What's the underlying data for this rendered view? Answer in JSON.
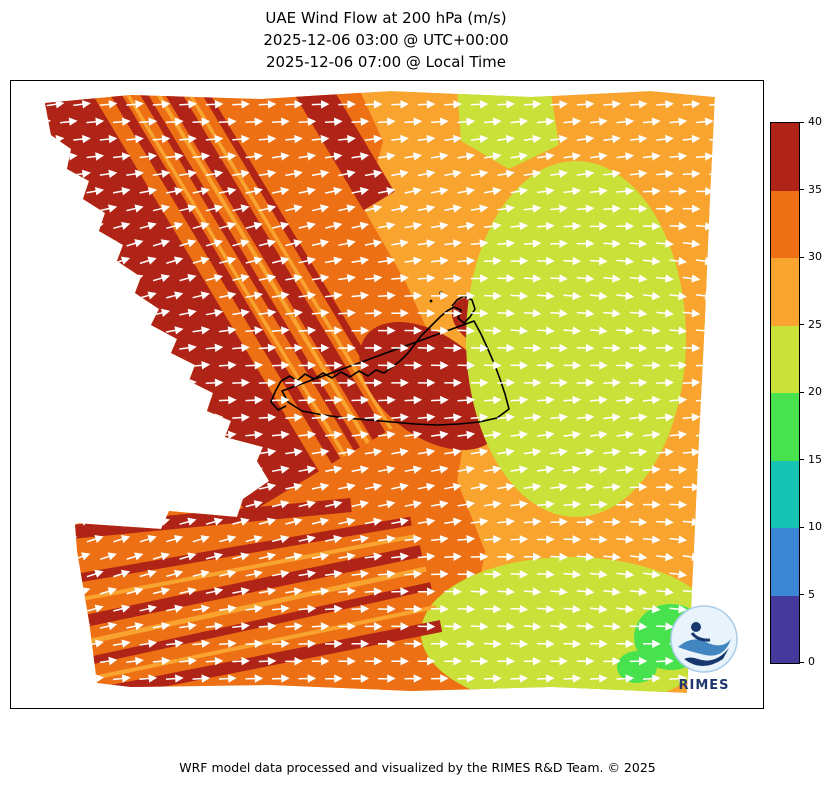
{
  "title": {
    "line1": "UAE Wind Flow at 200 hPa (m/s)",
    "line2": "2025-12-06 03:00 @ UTC+00:00",
    "line3": "2025-12-06 07:00 @ Local Time"
  },
  "footer": {
    "text": "WRF model data processed and visualized by the RIMES R&D Team. © 2025"
  },
  "logo": {
    "text": "RIMES"
  },
  "colorbar": {
    "min": 0,
    "max": 40,
    "step": 5,
    "tick_labels": [
      "0",
      "5",
      "10",
      "15",
      "20",
      "25",
      "30",
      "35",
      "40"
    ],
    "colors": [
      "#453a9b",
      "#3c86d6",
      "#17c3b3",
      "#49e24f",
      "#c9e139",
      "#f9a42f",
      "#ee7014",
      "#b02317"
    ]
  },
  "chart_data": {
    "type": "heatmap",
    "subtype": "filled-contour wind speed map with streamline arrows",
    "title": "UAE Wind Flow at 200 hPa (m/s)",
    "valid_time_utc": "2025-12-06 03:00 @ UTC+00:00",
    "valid_time_local": "2025-12-06 07:00 @ Local Time",
    "variable": "wind speed at 200 hPa",
    "units": "m/s",
    "levels": [
      0,
      5,
      10,
      15,
      20,
      25,
      30,
      35,
      40
    ],
    "palette": [
      "#453a9b",
      "#3c86d6",
      "#17c3b3",
      "#49e24f",
      "#c9e139",
      "#f9a42f",
      "#ee7014",
      "#b02317"
    ],
    "legend_position": "right",
    "grid": false,
    "regions": [
      {
        "area": "northwest diagonal band along domain edge",
        "speed_range_ms": "35-40"
      },
      {
        "area": "west-central band and southwest block (striped)",
        "speed_range_ms": "30-35"
      },
      {
        "area": "core patch over UAE coastline",
        "speed_range_ms": "35-40"
      },
      {
        "area": "central column, top edge and far right edge",
        "speed_range_ms": "25-30"
      },
      {
        "area": "eastern third, two large masses (upper and lower)",
        "speed_range_ms": "20-25"
      },
      {
        "area": "small pocket near southeast corner beside logo",
        "speed_range_ms": "15-20"
      }
    ],
    "flow": {
      "pattern": "streamline arrows",
      "color": "#ffffff",
      "general_direction": "west-to-east, slightly upward on the west side"
    },
    "arrow_grid": {
      "rows": 36,
      "cols": 29,
      "dx": 26.5,
      "dy": 17.4,
      "length": 16,
      "head": 6,
      "angle_left": -14,
      "angle_right": 2.5,
      "wave": 6.5
    }
  }
}
